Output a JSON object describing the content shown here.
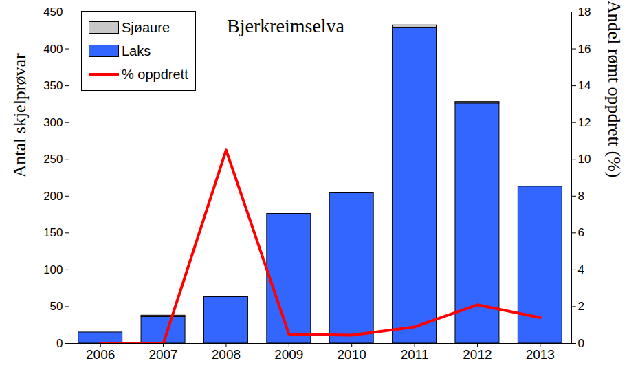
{
  "chart_data": {
    "type": "bar",
    "title": "Bjerkreimselva",
    "categories": [
      "2006",
      "2007",
      "2008",
      "2009",
      "2010",
      "2011",
      "2012",
      "2013"
    ],
    "stacked": true,
    "legend": "upper left",
    "grid": false,
    "y_label": "Antal skjelprøvar",
    "y2_label": "Andel rømt oppdrett (%)",
    "ylim": [
      0,
      450
    ],
    "yticks": [
      0,
      50,
      100,
      150,
      200,
      250,
      300,
      350,
      400,
      450
    ],
    "y2lim": [
      0,
      18
    ],
    "y2ticks": [
      0,
      2,
      4,
      6,
      8,
      10,
      12,
      14,
      16,
      18
    ],
    "series": [
      {
        "name": "Sjøaure",
        "type": "bar",
        "color": "#c8c8c8",
        "values": [
          0,
          2,
          0,
          0,
          0,
          3,
          2,
          0
        ]
      },
      {
        "name": "Laks",
        "type": "bar",
        "color": "#3366ff",
        "values": [
          15,
          36,
          63,
          176,
          204,
          429,
          326,
          213
        ]
      },
      {
        "name": "% oppdrett",
        "type": "line",
        "axis": "y2",
        "color": "#ff0000",
        "values": [
          0,
          0,
          10.5,
          0.5,
          0.45,
          0.9,
          2.1,
          1.4
        ]
      }
    ]
  }
}
